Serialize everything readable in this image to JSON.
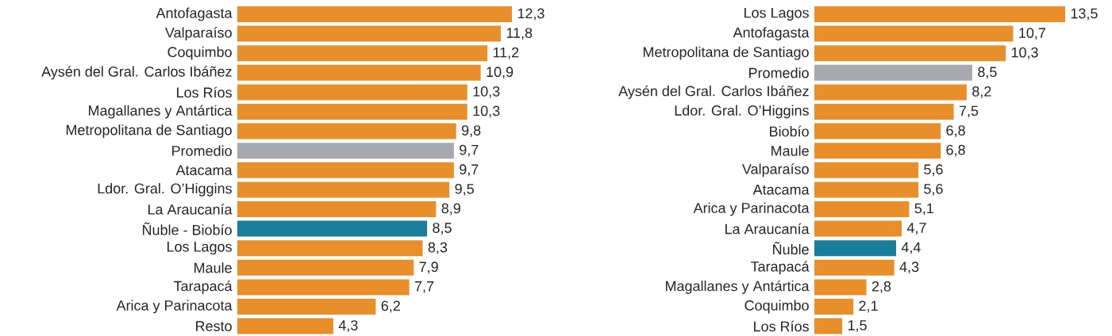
{
  "chart_data": [
    {
      "type": "bar",
      "orientation": "horizontal",
      "categories": [
        "Antofagasta",
        "Valparaíso",
        "Coquimbo",
        "Aysén del Gral. Carlos Ibáñez",
        "Los Ríos",
        "Magallanes y Antártica",
        "Metropolitana de Santiago",
        "Promedio",
        "Atacama",
        "Ldor. Gral. O’Higgins",
        "La Araucanía",
        "Ñuble - Biobío",
        "Los Lagos",
        "Maule",
        "Tarapacá",
        "Arica y Parinacota",
        "Resto"
      ],
      "values": [
        12.3,
        11.8,
        11.2,
        10.9,
        10.3,
        10.3,
        9.8,
        9.7,
        9.7,
        9.5,
        8.9,
        8.5,
        8.3,
        7.9,
        7.7,
        6.2,
        4.3
      ],
      "value_labels": [
        "12,3",
        "11,8",
        "11,2",
        "10,9",
        "10,3",
        "10,3",
        "9,8",
        "9,7",
        "9,7",
        "9,5",
        "8,9",
        "8,5",
        "8,3",
        "7,9",
        "7,7",
        "6,2",
        "4,3"
      ],
      "colors": [
        "#e88f2c",
        "#e88f2c",
        "#e88f2c",
        "#e88f2c",
        "#e88f2c",
        "#e88f2c",
        "#e88f2c",
        "#a8a9ae",
        "#e88f2c",
        "#e88f2c",
        "#e88f2c",
        "#1a7d9c",
        "#e88f2c",
        "#e88f2c",
        "#e88f2c",
        "#e88f2c",
        "#e88f2c"
      ]
    },
    {
      "type": "bar",
      "orientation": "horizontal",
      "categories": [
        "Los Lagos",
        "Antofagasta",
        "Metropolitana de Santiago",
        "Promedio",
        "Aysén del Gral. Carlos Ibáñez",
        "Ldor. Gral. O’Higgins",
        "Biobío",
        "Maule",
        "Valparaíso",
        "Atacama",
        "Arica y Parinacota",
        "La Araucanía",
        "Ñuble",
        "Tarapacá",
        "Magallanes y Antártica",
        "Coquimbo",
        "Los Ríos"
      ],
      "values": [
        13.5,
        10.7,
        10.3,
        8.5,
        8.2,
        7.5,
        6.8,
        6.8,
        5.6,
        5.6,
        5.1,
        4.7,
        4.4,
        4.3,
        2.8,
        2.1,
        1.5
      ],
      "value_labels": [
        "13,5",
        "10,7",
        "10,3",
        "8,5",
        "8,2",
        "7,5",
        "6,8",
        "6,8",
        "5,6",
        "5,6",
        "5,1",
        "4,7",
        "4,4",
        "4,3",
        "2,8",
        "2,1",
        "1,5"
      ],
      "colors": [
        "#e88f2c",
        "#e88f2c",
        "#e88f2c",
        "#a8a9ae",
        "#e88f2c",
        "#e88f2c",
        "#e88f2c",
        "#e88f2c",
        "#e88f2c",
        "#e88f2c",
        "#e88f2c",
        "#e88f2c",
        "#1a7d9c",
        "#e88f2c",
        "#e88f2c",
        "#e88f2c",
        "#e88f2c"
      ]
    }
  ]
}
